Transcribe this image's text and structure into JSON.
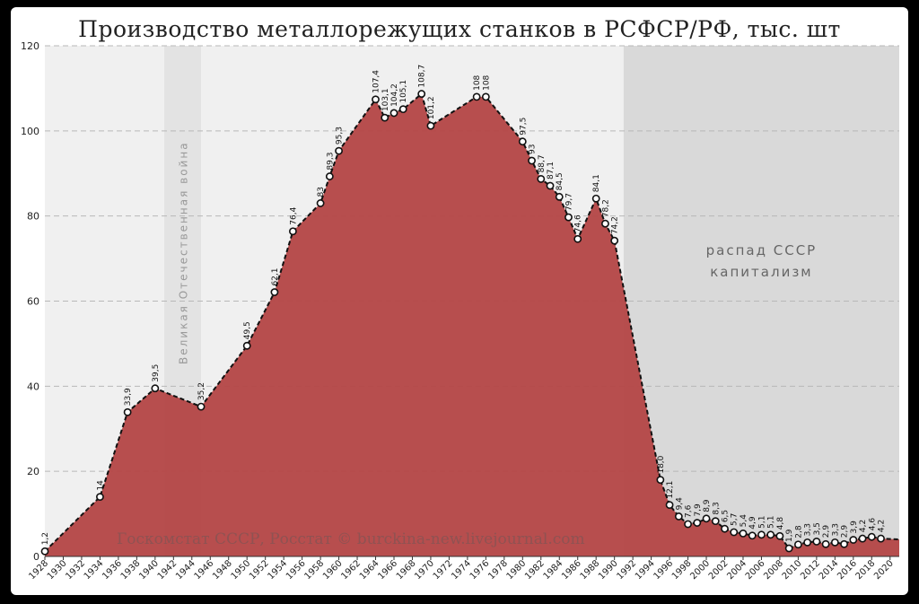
{
  "title": "Производство металлорежущих станков в РСФСР/РФ, тыс. шт",
  "source": "Госкомстат СССР, Росстат © burckina-new.livejournal.com",
  "annotations": {
    "war": "Великая Отечественная война",
    "ussr_line1": "распад СССР",
    "ussr_line2": "капитализм"
  },
  "colors": {
    "area_fill": "#b54848",
    "line": "#111111",
    "band_light": "#f0f0f0",
    "band_war": "#e3e3e3",
    "band_post": "#d9d9d9"
  },
  "chart_data": {
    "type": "area",
    "title": "Производство металлорежущих станков в РСФСР/РФ, тыс. шт",
    "xlim": [
      1928,
      2021
    ],
    "ylim": [
      0,
      120
    ],
    "y_ticks": [
      0,
      20,
      40,
      60,
      80,
      100,
      120
    ],
    "x_ticks": [
      1928,
      1930,
      1932,
      1934,
      1936,
      1938,
      1940,
      1942,
      1944,
      1946,
      1948,
      1950,
      1952,
      1954,
      1956,
      1958,
      1960,
      1962,
      1964,
      1966,
      1968,
      1970,
      1972,
      1974,
      1976,
      1978,
      1980,
      1982,
      1984,
      1986,
      1988,
      1990,
      1992,
      1994,
      1996,
      1998,
      2000,
      2002,
      2004,
      2006,
      2008,
      2010,
      2012,
      2014,
      2016,
      2018,
      2020
    ],
    "grid": true,
    "shaded_periods": [
      {
        "from": 1941,
        "to": 1945,
        "label": "Великая Отечественная война"
      },
      {
        "from": 1991,
        "to": 2021,
        "label": "распад СССР / капитализм"
      }
    ],
    "points": [
      {
        "x": 1928,
        "y": 1.2,
        "label": "1,2"
      },
      {
        "x": 1934,
        "y": 14,
        "label": "14"
      },
      {
        "x": 1937,
        "y": 33.9,
        "label": "33,9"
      },
      {
        "x": 1940,
        "y": 39.5,
        "label": "39,5"
      },
      {
        "x": 1945,
        "y": 35.2,
        "label": "35,2"
      },
      {
        "x": 1950,
        "y": 49.5,
        "label": "49,5"
      },
      {
        "x": 1953,
        "y": 62.1,
        "label": "62,1"
      },
      {
        "x": 1955,
        "y": 76.4,
        "label": "76,4"
      },
      {
        "x": 1958,
        "y": 83,
        "label": "83"
      },
      {
        "x": 1959,
        "y": 89.3,
        "label": "89,3"
      },
      {
        "x": 1960,
        "y": 95.3,
        "label": "95,3"
      },
      {
        "x": 1964,
        "y": 107.4,
        "label": "107,4"
      },
      {
        "x": 1965,
        "y": 103.1,
        "label": "103,1"
      },
      {
        "x": 1966,
        "y": 104.2,
        "label": "104,2"
      },
      {
        "x": 1967,
        "y": 105.1,
        "label": "105,1"
      },
      {
        "x": 1969,
        "y": 108.7,
        "label": "108,7"
      },
      {
        "x": 1970,
        "y": 101.2,
        "label": "101,2"
      },
      {
        "x": 1975,
        "y": 108,
        "label": "108"
      },
      {
        "x": 1976,
        "y": 108,
        "label": "108"
      },
      {
        "x": 1980,
        "y": 97.5,
        "label": "97,5"
      },
      {
        "x": 1981,
        "y": 93,
        "label": "93"
      },
      {
        "x": 1982,
        "y": 88.7,
        "label": "88,7"
      },
      {
        "x": 1983,
        "y": 87.1,
        "label": "87,1"
      },
      {
        "x": 1984,
        "y": 84.5,
        "label": "84,5"
      },
      {
        "x": 1985,
        "y": 79.7,
        "label": "79,7"
      },
      {
        "x": 1986,
        "y": 74.6,
        "label": "74,6"
      },
      {
        "x": 1988,
        "y": 84.1,
        "label": "84,1"
      },
      {
        "x": 1989,
        "y": 78.2,
        "label": "78,2"
      },
      {
        "x": 1990,
        "y": 74.2,
        "label": "74,2"
      },
      {
        "x": 1995,
        "y": 18.0,
        "label": "18,0"
      },
      {
        "x": 1996,
        "y": 12.1,
        "label": "12,1"
      },
      {
        "x": 1997,
        "y": 9.4,
        "label": "9,4"
      },
      {
        "x": 1998,
        "y": 7.6,
        "label": "7,6"
      },
      {
        "x": 1999,
        "y": 7.9,
        "label": "7,9"
      },
      {
        "x": 2000,
        "y": 8.9,
        "label": "8,9"
      },
      {
        "x": 2001,
        "y": 8.3,
        "label": "8,3"
      },
      {
        "x": 2002,
        "y": 6.5,
        "label": "6,5"
      },
      {
        "x": 2003,
        "y": 5.7,
        "label": "5,7"
      },
      {
        "x": 2004,
        "y": 5.4,
        "label": "5,4"
      },
      {
        "x": 2005,
        "y": 4.9,
        "label": "4,9"
      },
      {
        "x": 2006,
        "y": 5.1,
        "label": "5,1"
      },
      {
        "x": 2007,
        "y": 5.1,
        "label": "5,1"
      },
      {
        "x": 2008,
        "y": 4.8,
        "label": "4,8"
      },
      {
        "x": 2009,
        "y": 1.9,
        "label": "1,9"
      },
      {
        "x": 2010,
        "y": 2.8,
        "label": "2,8"
      },
      {
        "x": 2011,
        "y": 3.3,
        "label": "3,3"
      },
      {
        "x": 2012,
        "y": 3.5,
        "label": "3,5"
      },
      {
        "x": 2013,
        "y": 2.9,
        "label": "2,9"
      },
      {
        "x": 2014,
        "y": 3.3,
        "label": "3,3"
      },
      {
        "x": 2015,
        "y": 2.9,
        "label": "2,9"
      },
      {
        "x": 2016,
        "y": 3.9,
        "label": "3,9"
      },
      {
        "x": 2017,
        "y": 4.2,
        "label": "4,2"
      },
      {
        "x": 2018,
        "y": 4.6,
        "label": "4,6"
      },
      {
        "x": 2019,
        "y": 4.2,
        "label": "4,2"
      },
      {
        "x": 2021,
        "y": 4.0,
        "label": ""
      }
    ]
  }
}
